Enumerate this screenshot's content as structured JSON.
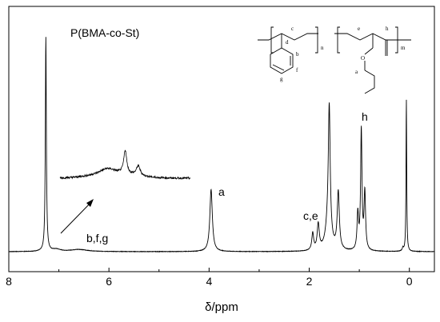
{
  "chart_data": {
    "type": "line",
    "title": "P(BMA-co-St)",
    "xlabel": "δ/ppm",
    "ylabel": "",
    "xlim": [
      8,
      -0.5
    ],
    "x_reversed": true,
    "x_ticks": [
      8,
      6,
      4,
      2,
      0
    ],
    "y_ticks": [],
    "grid": false,
    "legend": "none",
    "baseline": 0.06,
    "peaks": [
      {
        "x": 7.26,
        "height": 1.0,
        "width": 0.012
      },
      {
        "x": 7.05,
        "height": 0.01,
        "width": 0.1
      },
      {
        "x": 6.6,
        "height": 0.01,
        "width": 0.2
      },
      {
        "x": 3.96,
        "height": 0.29,
        "width": 0.03
      },
      {
        "x": 1.93,
        "height": 0.08,
        "width": 0.022
      },
      {
        "x": 1.82,
        "height": 0.12,
        "width": 0.025
      },
      {
        "x": 1.6,
        "height": 0.58,
        "width": 0.022
      },
      {
        "x": 1.62,
        "height": 0.12,
        "width": 0.06
      },
      {
        "x": 1.42,
        "height": 0.27,
        "width": 0.025
      },
      {
        "x": 1.03,
        "height": 0.17,
        "width": 0.018
      },
      {
        "x": 0.96,
        "height": 0.56,
        "width": 0.016
      },
      {
        "x": 0.89,
        "height": 0.27,
        "width": 0.018
      },
      {
        "x": 0.06,
        "height": 0.71,
        "width": 0.008
      },
      {
        "x": 0.13,
        "height": 0.015,
        "width": 0.015
      }
    ],
    "inset": {
      "description_free": true,
      "x_range": [
        7.5,
        6.4
      ],
      "peaks": [
        {
          "x": 6.95,
          "height": 0.6,
          "width": 0.015
        },
        {
          "x": 6.84,
          "height": 0.25,
          "width": 0.02
        },
        {
          "x": 7.1,
          "height": 0.15,
          "width": 0.08
        }
      ]
    },
    "annotations": [
      {
        "id": "a",
        "text": "a",
        "x": 3.96
      },
      {
        "id": "ce",
        "text": "c,e",
        "x": 1.82
      },
      {
        "id": "h",
        "text": "h",
        "x": 0.96
      },
      {
        "id": "bfg",
        "text": "b,f,g",
        "x": 7.0
      }
    ]
  },
  "structure": {
    "labels": {
      "c": "c",
      "d": "d",
      "n": "n",
      "e": "e",
      "h": "h",
      "m": "m",
      "b": "b",
      "f": "f",
      "g": "g",
      "a": "a",
      "O": "O"
    }
  }
}
